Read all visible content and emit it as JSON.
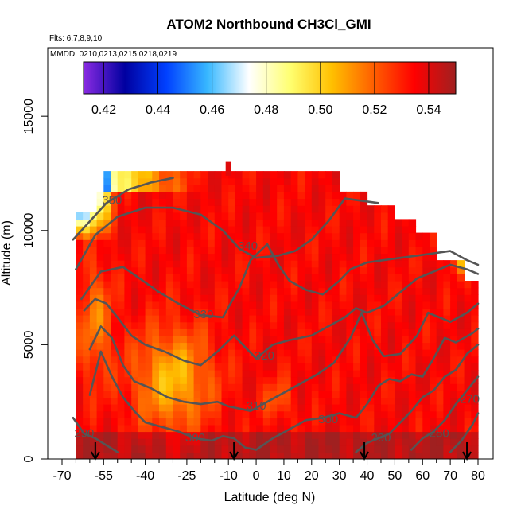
{
  "chart_data": {
    "type": "heatmap",
    "title": "ATOM2 Northbound CH3Cl_GMI",
    "flights_label": "Flts: 6,7,8,9,10",
    "dates_label": "MMDD: 0210,0213,0215,0218,0219",
    "xlabel": "Latitude (deg N)",
    "ylabel": "Altitude (m)",
    "xlim": [
      -70,
      80
    ],
    "ylim": [
      0,
      18000
    ],
    "x_ticks": [
      -70,
      -55,
      -40,
      -25,
      -10,
      0,
      10,
      20,
      30,
      40,
      50,
      60,
      70,
      80
    ],
    "x_minor_ticks": [
      -65,
      -60,
      -50,
      -45,
      -35,
      -30,
      -20,
      -15,
      -5,
      5,
      15,
      25,
      35,
      45,
      55,
      65,
      75
    ],
    "y_ticks": [
      0,
      5000,
      10000,
      15000
    ],
    "colorbar": {
      "min": 0.4125,
      "max": 0.55,
      "ticks": [
        0.42,
        0.44,
        0.46,
        0.48,
        0.5,
        0.52,
        0.54
      ],
      "tick_labels": [
        "0.42",
        "0.44",
        "0.46",
        "0.48",
        "0.50",
        "0.52",
        "0.54"
      ],
      "colors": [
        "#8a2be2",
        "#0000a0",
        "#0040ff",
        "#38b8ff",
        "#ffffff",
        "#ffff70",
        "#ffc000",
        "#ff6000",
        "#ff0000",
        "#a02020"
      ]
    },
    "contour_labels": [
      {
        "text": "350",
        "x": -52,
        "y": 11300
      },
      {
        "text": "340",
        "x": -3,
        "y": 9300
      },
      {
        "text": "330",
        "x": -19,
        "y": 6300
      },
      {
        "text": "320",
        "x": 3,
        "y": 4500
      },
      {
        "text": "310",
        "x": 0,
        "y": 2300
      },
      {
        "text": "300",
        "x": 26,
        "y": 1700
      },
      {
        "text": "300",
        "x": -22,
        "y": 900
      },
      {
        "text": "290",
        "x": 45,
        "y": 900
      },
      {
        "text": "290",
        "x": -62,
        "y": 1100
      },
      {
        "text": "280",
        "x": 66,
        "y": 1100
      },
      {
        "text": "270",
        "x": 77,
        "y": 2600
      }
    ],
    "contour_levels": [
      270,
      280,
      290,
      300,
      310,
      320,
      330,
      340,
      350
    ],
    "flight_arrows_lat": [
      -58,
      -8,
      39,
      76
    ]
  }
}
